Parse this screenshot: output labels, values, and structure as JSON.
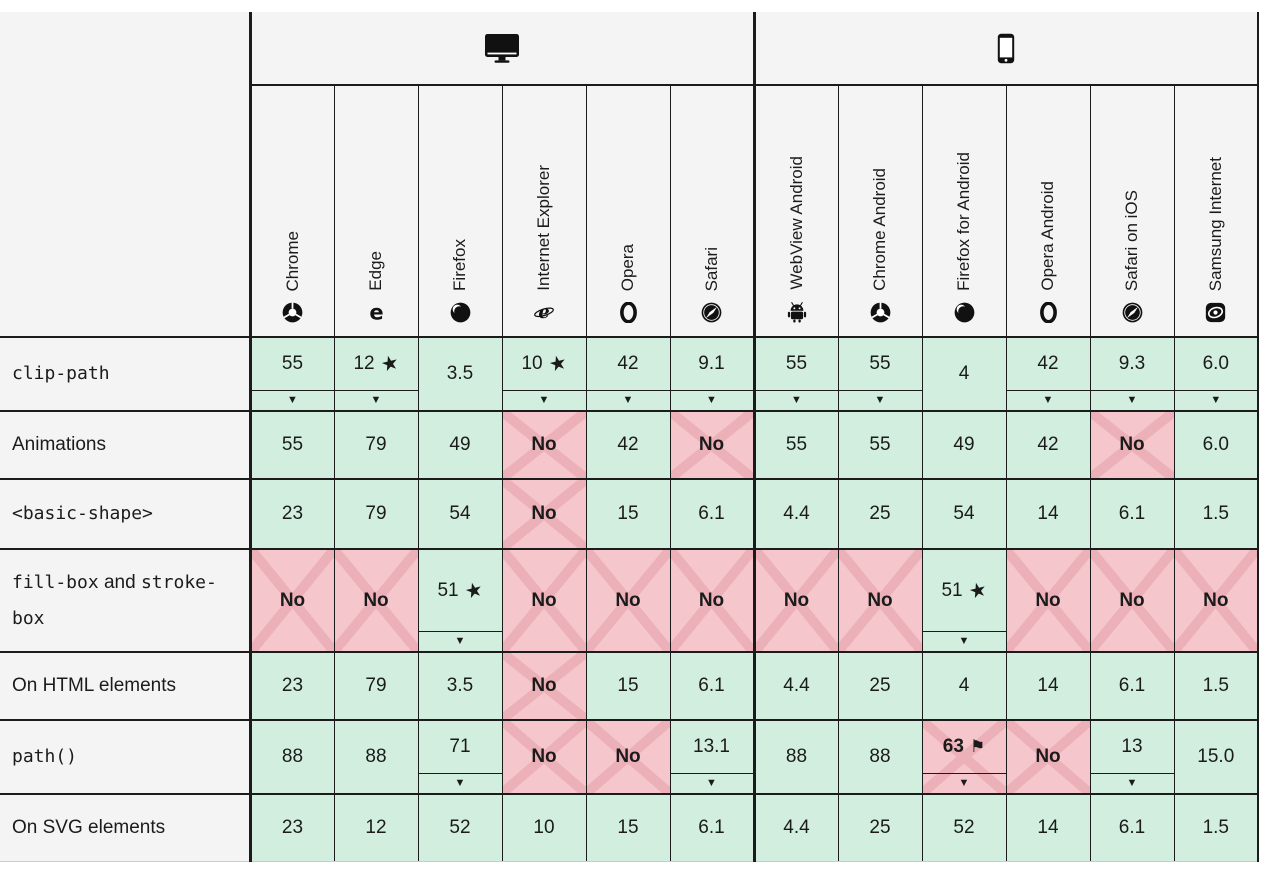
{
  "colors": {
    "supported_bg": "#d2eede",
    "unsupported_bg": "#f5c6cb",
    "unsupported_stripe": "#ecb1b8",
    "header_bg": "#f3f4f3",
    "border": "#1b1b1b",
    "text": "#1b1b1b"
  },
  "glyphs": {
    "footnote_marker": "▼",
    "star_marker": "★",
    "flag_marker": "⚑"
  },
  "platforms": [
    {
      "id": "desktop",
      "icon": "desktop-icon",
      "span": 6
    },
    {
      "id": "mobile",
      "icon": "mobile-icon",
      "span": 6
    }
  ],
  "browsers": [
    {
      "name": "Chrome",
      "icon": "chrome-icon"
    },
    {
      "name": "Edge",
      "icon": "edge-icon"
    },
    {
      "name": "Firefox",
      "icon": "firefox-icon"
    },
    {
      "name": "Internet Explorer",
      "icon": "internet-explorer-icon"
    },
    {
      "name": "Opera",
      "icon": "opera-icon"
    },
    {
      "name": "Safari",
      "icon": "safari-icon"
    },
    {
      "name": "WebView Android",
      "icon": "webview-android-icon"
    },
    {
      "name": "Chrome Android",
      "icon": "chrome-android-icon"
    },
    {
      "name": "Firefox for Android",
      "icon": "firefox-android-icon"
    },
    {
      "name": "Opera Android",
      "icon": "opera-android-icon"
    },
    {
      "name": "Safari on iOS",
      "icon": "safari-ios-icon"
    },
    {
      "name": "Samsung Internet",
      "icon": "samsung-internet-icon"
    }
  ],
  "features": [
    {
      "label": [
        {
          "text": "clip-path",
          "code": true
        }
      ],
      "cells": [
        {
          "text": "55",
          "support": "yes",
          "footnote": true
        },
        {
          "text": "12",
          "support": "yes",
          "star": true,
          "footnote": true
        },
        {
          "text": "3.5",
          "support": "yes"
        },
        {
          "text": "10",
          "support": "yes",
          "star": true,
          "footnote": true
        },
        {
          "text": "42",
          "support": "yes",
          "footnote": true
        },
        {
          "text": "9.1",
          "support": "yes",
          "footnote": true
        },
        {
          "text": "55",
          "support": "yes",
          "footnote": true
        },
        {
          "text": "55",
          "support": "yes",
          "footnote": true
        },
        {
          "text": "4",
          "support": "yes"
        },
        {
          "text": "42",
          "support": "yes",
          "footnote": true
        },
        {
          "text": "9.3",
          "support": "yes",
          "footnote": true
        },
        {
          "text": "6.0",
          "support": "yes",
          "footnote": true
        }
      ]
    },
    {
      "label": [
        {
          "text": "Animations",
          "code": false
        }
      ],
      "cells": [
        {
          "text": "55",
          "support": "yes"
        },
        {
          "text": "79",
          "support": "yes"
        },
        {
          "text": "49",
          "support": "yes"
        },
        {
          "text": "No",
          "support": "no",
          "bold": true
        },
        {
          "text": "42",
          "support": "yes"
        },
        {
          "text": "No",
          "support": "no",
          "bold": true
        },
        {
          "text": "55",
          "support": "yes"
        },
        {
          "text": "55",
          "support": "yes"
        },
        {
          "text": "49",
          "support": "yes"
        },
        {
          "text": "42",
          "support": "yes"
        },
        {
          "text": "No",
          "support": "no",
          "bold": true
        },
        {
          "text": "6.0",
          "support": "yes"
        }
      ]
    },
    {
      "label": [
        {
          "text": "<basic-shape>",
          "code": true
        }
      ],
      "cells": [
        {
          "text": "23",
          "support": "yes"
        },
        {
          "text": "79",
          "support": "yes"
        },
        {
          "text": "54",
          "support": "yes"
        },
        {
          "text": "No",
          "support": "no",
          "bold": true
        },
        {
          "text": "15",
          "support": "yes"
        },
        {
          "text": "6.1",
          "support": "yes"
        },
        {
          "text": "4.4",
          "support": "yes"
        },
        {
          "text": "25",
          "support": "yes"
        },
        {
          "text": "54",
          "support": "yes"
        },
        {
          "text": "14",
          "support": "yes"
        },
        {
          "text": "6.1",
          "support": "yes"
        },
        {
          "text": "1.5",
          "support": "yes"
        }
      ]
    },
    {
      "label": [
        {
          "text": "fill-box",
          "code": true
        },
        {
          "text": " and ",
          "code": false
        },
        {
          "text": "stroke-box",
          "code": true
        }
      ],
      "cells": [
        {
          "text": "No",
          "support": "no",
          "bold": true
        },
        {
          "text": "No",
          "support": "no",
          "bold": true
        },
        {
          "text": "51",
          "support": "yes",
          "star": true,
          "footnote": true
        },
        {
          "text": "No",
          "support": "no",
          "bold": true
        },
        {
          "text": "No",
          "support": "no",
          "bold": true
        },
        {
          "text": "No",
          "support": "no",
          "bold": true
        },
        {
          "text": "No",
          "support": "no",
          "bold": true
        },
        {
          "text": "No",
          "support": "no",
          "bold": true
        },
        {
          "text": "51",
          "support": "yes",
          "star": true,
          "footnote": true
        },
        {
          "text": "No",
          "support": "no",
          "bold": true
        },
        {
          "text": "No",
          "support": "no",
          "bold": true
        },
        {
          "text": "No",
          "support": "no",
          "bold": true
        }
      ]
    },
    {
      "label": [
        {
          "text": "On HTML elements",
          "code": false
        }
      ],
      "cells": [
        {
          "text": "23",
          "support": "yes"
        },
        {
          "text": "79",
          "support": "yes"
        },
        {
          "text": "3.5",
          "support": "yes"
        },
        {
          "text": "No",
          "support": "no",
          "bold": true
        },
        {
          "text": "15",
          "support": "yes"
        },
        {
          "text": "6.1",
          "support": "yes"
        },
        {
          "text": "4.4",
          "support": "yes"
        },
        {
          "text": "25",
          "support": "yes"
        },
        {
          "text": "4",
          "support": "yes"
        },
        {
          "text": "14",
          "support": "yes"
        },
        {
          "text": "6.1",
          "support": "yes"
        },
        {
          "text": "1.5",
          "support": "yes"
        }
      ]
    },
    {
      "label": [
        {
          "text": "path()",
          "code": true
        }
      ],
      "cells": [
        {
          "text": "88",
          "support": "yes"
        },
        {
          "text": "88",
          "support": "yes"
        },
        {
          "text": "71",
          "support": "yes",
          "footnote": true
        },
        {
          "text": "No",
          "support": "no",
          "bold": true
        },
        {
          "text": "No",
          "support": "no",
          "bold": true
        },
        {
          "text": "13.1",
          "support": "yes",
          "footnote": true
        },
        {
          "text": "88",
          "support": "yes"
        },
        {
          "text": "88",
          "support": "yes"
        },
        {
          "text": "63",
          "support": "no",
          "bold": true,
          "flag": true,
          "footnote": true
        },
        {
          "text": "No",
          "support": "no",
          "bold": true
        },
        {
          "text": "13",
          "support": "yes",
          "footnote": true
        },
        {
          "text": "15.0",
          "support": "yes"
        }
      ]
    },
    {
      "label": [
        {
          "text": "On SVG elements",
          "code": false
        }
      ],
      "cells": [
        {
          "text": "23",
          "support": "yes"
        },
        {
          "text": "12",
          "support": "yes"
        },
        {
          "text": "52",
          "support": "yes"
        },
        {
          "text": "10",
          "support": "yes"
        },
        {
          "text": "15",
          "support": "yes"
        },
        {
          "text": "6.1",
          "support": "yes"
        },
        {
          "text": "4.4",
          "support": "yes"
        },
        {
          "text": "25",
          "support": "yes"
        },
        {
          "text": "52",
          "support": "yes"
        },
        {
          "text": "14",
          "support": "yes"
        },
        {
          "text": "6.1",
          "support": "yes"
        },
        {
          "text": "1.5",
          "support": "yes"
        }
      ]
    }
  ]
}
